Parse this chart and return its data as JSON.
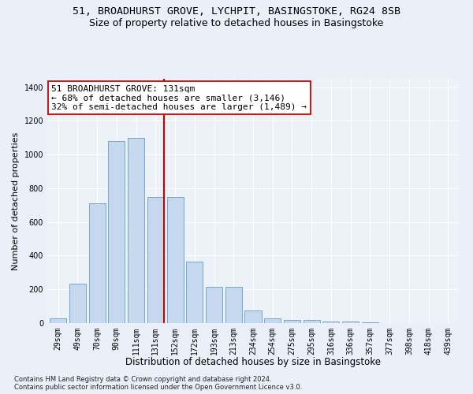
{
  "title": "51, BROADHURST GROVE, LYCHPIT, BASINGSTOKE, RG24 8SB",
  "subtitle": "Size of property relative to detached houses in Basingstoke",
  "xlabel": "Distribution of detached houses by size in Basingstoke",
  "ylabel": "Number of detached properties",
  "footnote1": "Contains HM Land Registry data © Crown copyright and database right 2024.",
  "footnote2": "Contains public sector information licensed under the Open Government Licence v3.0.",
  "categories": [
    "29sqm",
    "49sqm",
    "70sqm",
    "90sqm",
    "111sqm",
    "131sqm",
    "152sqm",
    "172sqm",
    "193sqm",
    "213sqm",
    "234sqm",
    "254sqm",
    "275sqm",
    "295sqm",
    "316sqm",
    "336sqm",
    "357sqm",
    "377sqm",
    "398sqm",
    "418sqm",
    "439sqm"
  ],
  "values": [
    28,
    235,
    710,
    1080,
    1100,
    750,
    750,
    365,
    215,
    215,
    75,
    28,
    18,
    18,
    8,
    8,
    5,
    0,
    0,
    0,
    0
  ],
  "bar_color": "#c5d8ed",
  "bar_edge_color": "#6fa8d0",
  "vline_index": 5,
  "vline_color": "#cc0000",
  "annotation_text": "51 BROADHURST GROVE: 131sqm\n← 68% of detached houses are smaller (3,146)\n32% of semi-detached houses are larger (1,489) →",
  "annotation_box_color": "#ffffff",
  "annotation_box_edge": "#cc0000",
  "ylim": [
    0,
    1450
  ],
  "yticks": [
    0,
    200,
    400,
    600,
    800,
    1000,
    1200,
    1400
  ],
  "bg_color": "#eaeff8",
  "plot_bg": "#edf1f8",
  "title_fontsize": 9.5,
  "subtitle_fontsize": 9,
  "tick_fontsize": 7,
  "annot_fontsize": 8,
  "xlabel_fontsize": 8.5,
  "ylabel_fontsize": 8,
  "footnote_fontsize": 6
}
